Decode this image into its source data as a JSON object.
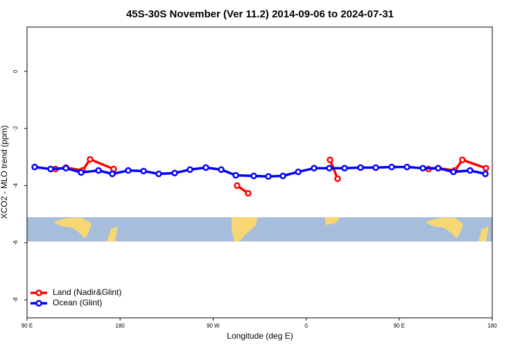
{
  "chart_data": {
    "type": "line",
    "title": "45S-30S November (Ver 11.2)   2014-09-06 to 2024-07-31",
    "x_label": "Longitude (deg E)",
    "y_label": "XCO2 - MLO trend (ppm)",
    "xlim": [
      90,
      540
    ],
    "xticks": [
      {
        "value": 90,
        "label": "90 E"
      },
      {
        "value": 180,
        "label": "180"
      },
      {
        "value": 270,
        "label": "90 W"
      },
      {
        "value": 360,
        "label": "0"
      },
      {
        "value": 450,
        "label": "90 E"
      },
      {
        "value": 540,
        "label": "180"
      }
    ],
    "ylim": [
      -8.63,
      1.55
    ],
    "yticks": [
      0,
      -2,
      -4,
      -6,
      -8
    ],
    "legend": "bottom-left",
    "series": [
      {
        "name": "Land (Nadir&Glint)",
        "color": "#ff0000",
        "x": [
          117.5,
          127.6,
          143.6,
          151.0,
          173.8,
          null,
          293.2,
          303.9,
          null,
          383.1,
          390.4,
          null,
          478.3,
          487.7,
          503.8,
          511.1,
          533.9
        ],
        "values": [
          -3.42,
          -3.37,
          -3.47,
          -3.08,
          -3.42,
          null,
          -4.0,
          -4.27,
          null,
          -3.1,
          -3.76,
          null,
          -3.42,
          -3.39,
          -3.47,
          -3.1,
          -3.39
        ]
      },
      {
        "name": "Ocean (Glint)",
        "color": "#0000ff",
        "x": [
          97.4,
          112.8,
          127.6,
          142.3,
          159.1,
          172.5,
          187.9,
          202.7,
          217.4,
          232.8,
          247.6,
          263.0,
          277.8,
          291.9,
          309.3,
          323.4,
          337.5,
          352.3,
          367.6,
          382.4,
          397.2,
          412.6,
          427.3,
          442.7,
          457.5,
          472.9,
          487.7,
          502.4,
          518.5,
          533.3
        ],
        "values": [
          -3.35,
          -3.42,
          -3.39,
          -3.54,
          -3.47,
          -3.59,
          -3.47,
          -3.49,
          -3.59,
          -3.56,
          -3.44,
          -3.37,
          -3.44,
          -3.64,
          -3.66,
          -3.68,
          -3.66,
          -3.52,
          -3.39,
          -3.39,
          -3.39,
          -3.37,
          -3.37,
          -3.35,
          -3.35,
          -3.39,
          -3.39,
          -3.52,
          -3.47,
          -3.59
        ]
      }
    ]
  }
}
